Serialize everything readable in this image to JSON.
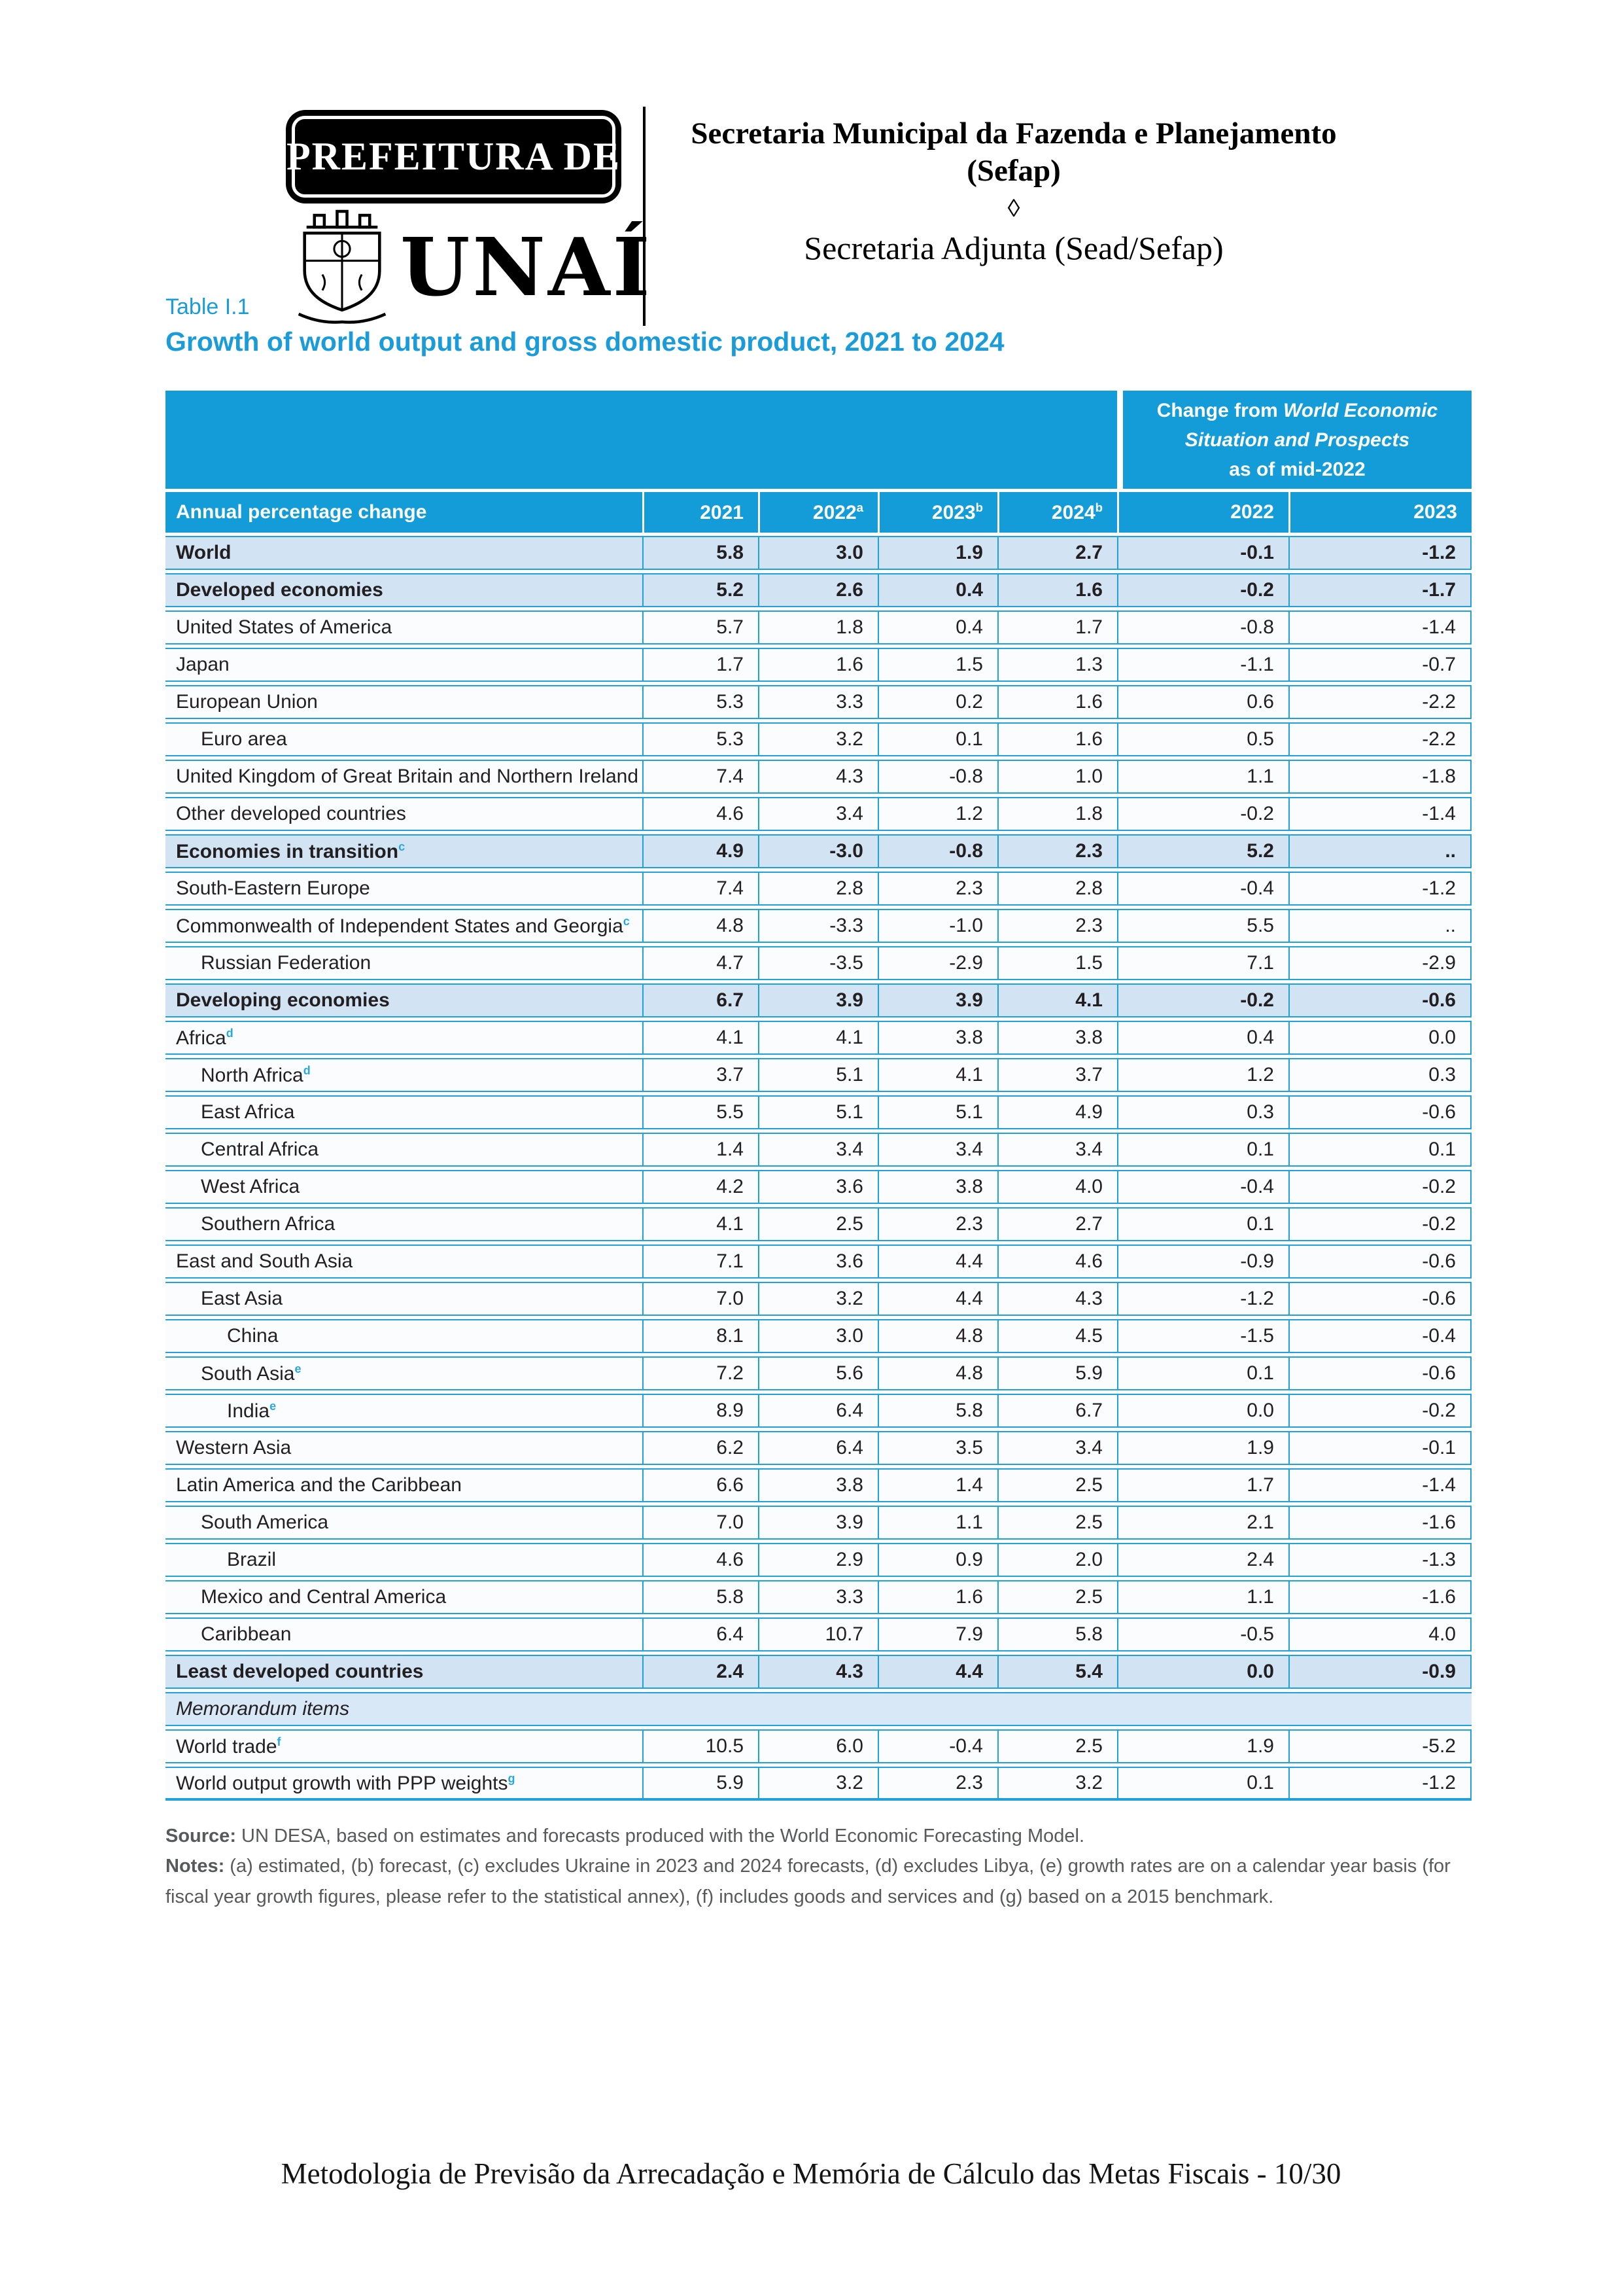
{
  "colors": {
    "accent_blue": "#149cd8",
    "section_row_bg": "#d2e3f4",
    "superscript_blue": "#2aa9de"
  },
  "header": {
    "prefeitura_label": "PREFEITURA DE",
    "city_name": "UNAÍ",
    "dept_line1": "Secretaria Municipal da Fazenda e Planejamento",
    "dept_line2": "(Sefap)",
    "diamond": "◊",
    "sub_dept": "Secretaria Adjunta (Sead/Sefap)"
  },
  "table": {
    "label": "Table I.1",
    "title": "Growth of world output and gross domestic product, 2021 to 2024",
    "change_header": {
      "l1n": "Change from ",
      "l1i": "World Economic",
      "l2i": "Situation and Prospects",
      "l3n": "as of mid-2022"
    },
    "col_header": "Annual percentage change",
    "year_cols": [
      {
        "label": "2021",
        "sup": ""
      },
      {
        "label": "2022",
        "sup": "a"
      },
      {
        "label": "2023",
        "sup": "b"
      },
      {
        "label": "2024",
        "sup": "b"
      }
    ],
    "change_cols": [
      "2022",
      "2023"
    ],
    "rows": [
      {
        "label": "World",
        "sup": "",
        "indent": 0,
        "bold": true,
        "type": "data",
        "values": [
          "5.8",
          "3.0",
          "1.9",
          "2.7",
          "-0.1",
          "-1.2"
        ]
      },
      {
        "label": "Developed economies",
        "sup": "",
        "indent": 0,
        "bold": true,
        "type": "data",
        "values": [
          "5.2",
          "2.6",
          "0.4",
          "1.6",
          "-0.2",
          "-1.7"
        ]
      },
      {
        "label": "United States of America",
        "sup": "",
        "indent": 0,
        "bold": false,
        "type": "data",
        "values": [
          "5.7",
          "1.8",
          "0.4",
          "1.7",
          "-0.8",
          "-1.4"
        ]
      },
      {
        "label": "Japan",
        "sup": "",
        "indent": 0,
        "bold": false,
        "type": "data",
        "values": [
          "1.7",
          "1.6",
          "1.5",
          "1.3",
          "-1.1",
          "-0.7"
        ]
      },
      {
        "label": "European Union",
        "sup": "",
        "indent": 0,
        "bold": false,
        "type": "data",
        "values": [
          "5.3",
          "3.3",
          "0.2",
          "1.6",
          "0.6",
          "-2.2"
        ]
      },
      {
        "label": "Euro area",
        "sup": "",
        "indent": 1,
        "bold": false,
        "type": "data",
        "values": [
          "5.3",
          "3.2",
          "0.1",
          "1.6",
          "0.5",
          "-2.2"
        ]
      },
      {
        "label": "United Kingdom of Great Britain and Northern Ireland",
        "sup": "",
        "indent": 0,
        "bold": false,
        "type": "data",
        "values": [
          "7.4",
          "4.3",
          "-0.8",
          "1.0",
          "1.1",
          "-1.8"
        ]
      },
      {
        "label": "Other developed countries",
        "sup": "",
        "indent": 0,
        "bold": false,
        "type": "data",
        "values": [
          "4.6",
          "3.4",
          "1.2",
          "1.8",
          "-0.2",
          "-1.4"
        ]
      },
      {
        "label": "Economies in transition",
        "sup": "c",
        "indent": 0,
        "bold": true,
        "type": "data",
        "values": [
          "4.9",
          "-3.0",
          "-0.8",
          "2.3",
          "5.2",
          ".."
        ]
      },
      {
        "label": "South-Eastern Europe",
        "sup": "",
        "indent": 0,
        "bold": false,
        "type": "data",
        "values": [
          "7.4",
          "2.8",
          "2.3",
          "2.8",
          "-0.4",
          "-1.2"
        ]
      },
      {
        "label": "Commonwealth of Independent States and Georgia",
        "sup": "c",
        "indent": 0,
        "bold": false,
        "type": "data",
        "values": [
          "4.8",
          "-3.3",
          "-1.0",
          "2.3",
          "5.5",
          ".."
        ]
      },
      {
        "label": "Russian Federation",
        "sup": "",
        "indent": 1,
        "bold": false,
        "type": "data",
        "values": [
          "4.7",
          "-3.5",
          "-2.9",
          "1.5",
          "7.1",
          "-2.9"
        ]
      },
      {
        "label": "Developing economies",
        "sup": "",
        "indent": 0,
        "bold": true,
        "type": "data",
        "values": [
          "6.7",
          "3.9",
          "3.9",
          "4.1",
          "-0.2",
          "-0.6"
        ]
      },
      {
        "label": "Africa",
        "sup": "d",
        "indent": 0,
        "bold": false,
        "type": "data",
        "values": [
          "4.1",
          "4.1",
          "3.8",
          "3.8",
          "0.4",
          "0.0"
        ]
      },
      {
        "label": "North Africa",
        "sup": "d",
        "indent": 1,
        "bold": false,
        "type": "data",
        "values": [
          "3.7",
          "5.1",
          "4.1",
          "3.7",
          "1.2",
          "0.3"
        ]
      },
      {
        "label": "East Africa",
        "sup": "",
        "indent": 1,
        "bold": false,
        "type": "data",
        "values": [
          "5.5",
          "5.1",
          "5.1",
          "4.9",
          "0.3",
          "-0.6"
        ]
      },
      {
        "label": "Central Africa",
        "sup": "",
        "indent": 1,
        "bold": false,
        "type": "data",
        "values": [
          "1.4",
          "3.4",
          "3.4",
          "3.4",
          "0.1",
          "0.1"
        ]
      },
      {
        "label": "West Africa",
        "sup": "",
        "indent": 1,
        "bold": false,
        "type": "data",
        "values": [
          "4.2",
          "3.6",
          "3.8",
          "4.0",
          "-0.4",
          "-0.2"
        ]
      },
      {
        "label": "Southern Africa",
        "sup": "",
        "indent": 1,
        "bold": false,
        "type": "data",
        "values": [
          "4.1",
          "2.5",
          "2.3",
          "2.7",
          "0.1",
          "-0.2"
        ]
      },
      {
        "label": "East and South Asia",
        "sup": "",
        "indent": 0,
        "bold": false,
        "type": "data",
        "values": [
          "7.1",
          "3.6",
          "4.4",
          "4.6",
          "-0.9",
          "-0.6"
        ]
      },
      {
        "label": "East Asia",
        "sup": "",
        "indent": 1,
        "bold": false,
        "type": "data",
        "values": [
          "7.0",
          "3.2",
          "4.4",
          "4.3",
          "-1.2",
          "-0.6"
        ]
      },
      {
        "label": "China",
        "sup": "",
        "indent": 2,
        "bold": false,
        "type": "data",
        "values": [
          "8.1",
          "3.0",
          "4.8",
          "4.5",
          "-1.5",
          "-0.4"
        ]
      },
      {
        "label": "South Asia",
        "sup": "e",
        "indent": 1,
        "bold": false,
        "type": "data",
        "values": [
          "7.2",
          "5.6",
          "4.8",
          "5.9",
          "0.1",
          "-0.6"
        ]
      },
      {
        "label": "India",
        "sup": "e",
        "indent": 2,
        "bold": false,
        "type": "data",
        "values": [
          "8.9",
          "6.4",
          "5.8",
          "6.7",
          "0.0",
          "-0.2"
        ]
      },
      {
        "label": "Western Asia",
        "sup": "",
        "indent": 0,
        "bold": false,
        "type": "data",
        "values": [
          "6.2",
          "6.4",
          "3.5",
          "3.4",
          "1.9",
          "-0.1"
        ]
      },
      {
        "label": "Latin America and the Caribbean",
        "sup": "",
        "indent": 0,
        "bold": false,
        "type": "data",
        "values": [
          "6.6",
          "3.8",
          "1.4",
          "2.5",
          "1.7",
          "-1.4"
        ]
      },
      {
        "label": "South America",
        "sup": "",
        "indent": 1,
        "bold": false,
        "type": "data",
        "values": [
          "7.0",
          "3.9",
          "1.1",
          "2.5",
          "2.1",
          "-1.6"
        ]
      },
      {
        "label": "Brazil",
        "sup": "",
        "indent": 2,
        "bold": false,
        "type": "data",
        "values": [
          "4.6",
          "2.9",
          "0.9",
          "2.0",
          "2.4",
          "-1.3"
        ]
      },
      {
        "label": "Mexico and Central America",
        "sup": "",
        "indent": 1,
        "bold": false,
        "type": "data",
        "values": [
          "5.8",
          "3.3",
          "1.6",
          "2.5",
          "1.1",
          "-1.6"
        ]
      },
      {
        "label": "Caribbean",
        "sup": "",
        "indent": 1,
        "bold": false,
        "type": "data",
        "values": [
          "6.4",
          "10.7",
          "7.9",
          "5.8",
          "-0.5",
          "4.0"
        ]
      },
      {
        "label": "Least developed countries",
        "sup": "",
        "indent": 0,
        "bold": true,
        "type": "data",
        "values": [
          "2.4",
          "4.3",
          "4.4",
          "5.4",
          "0.0",
          "-0.9"
        ]
      },
      {
        "label": "Memorandum items",
        "sup": "",
        "indent": 0,
        "bold": false,
        "type": "memo",
        "values": []
      },
      {
        "label": "World trade",
        "sup": "f",
        "indent": 0,
        "bold": false,
        "type": "data",
        "values": [
          "10.5",
          "6.0",
          "-0.4",
          "2.5",
          "1.9",
          "-5.2"
        ]
      },
      {
        "label": "World output growth with PPP weights",
        "sup": "g",
        "indent": 0,
        "bold": false,
        "type": "data",
        "values": [
          "5.9",
          "3.2",
          "2.3",
          "3.2",
          "0.1",
          "-1.2"
        ]
      }
    ],
    "source_bold": "Source:",
    "source_rest": " UN DESA, based on estimates and forecasts produced with the World Economic Forecasting Model.",
    "notes_bold": "Notes:",
    "notes_rest": " (a) estimated, (b) forecast, (c) excludes Ukraine in 2023 and 2024 forecasts, (d) excludes Libya, (e) growth rates are on a calendar year basis (for fiscal year growth figures, please refer to the statistical annex), (f) includes goods and services and (g) based on a 2015 benchmark."
  },
  "footer": {
    "text": "Metodologia de Previsão da Arrecadação e Memória de Cálculo das Metas Fiscais - 10/30"
  }
}
